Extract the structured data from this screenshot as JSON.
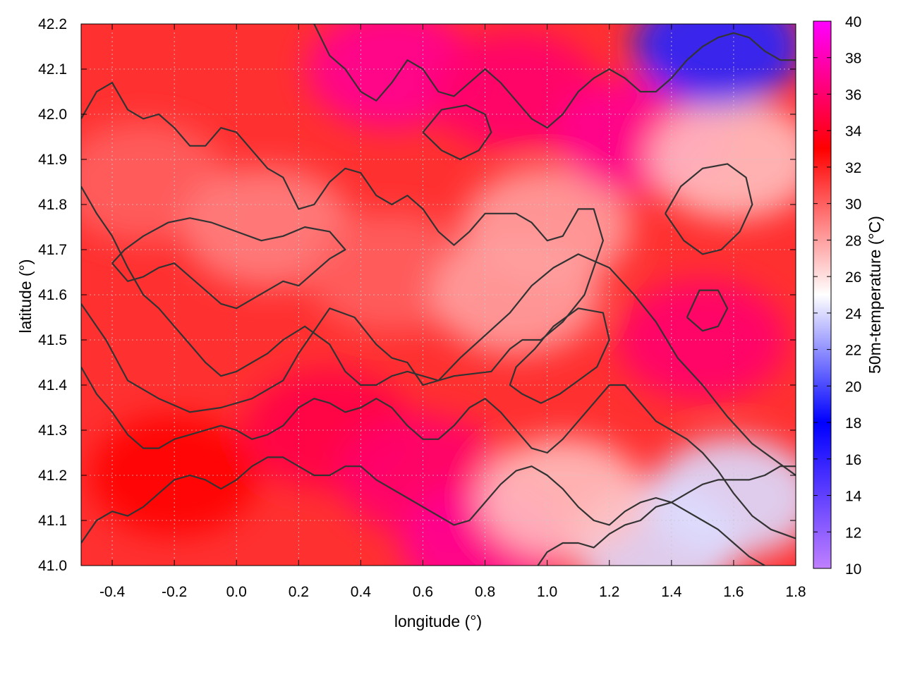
{
  "chart_data": {
    "type": "heatmap",
    "title": "",
    "xlabel": "longitude (°)",
    "ylabel": "latitude (°)",
    "colorbar_label": "50m-temperature (°C)",
    "xlim": [
      -0.5,
      1.8
    ],
    "ylim": [
      41.0,
      42.2
    ],
    "clim": [
      10,
      40
    ],
    "x_ticks": [
      -0.4,
      -0.2,
      0.0,
      0.2,
      0.4,
      0.6,
      0.8,
      1.0,
      1.2,
      1.4,
      1.6,
      1.8
    ],
    "x_tick_labels": [
      "-0.4",
      "-0.2",
      "0.0",
      "0.2",
      "0.4",
      "0.6",
      "0.8",
      "1.0",
      "1.2",
      "1.4",
      "1.6",
      "1.8"
    ],
    "y_ticks": [
      41.0,
      41.1,
      41.2,
      41.3,
      41.4,
      41.5,
      41.6,
      41.7,
      41.8,
      41.9,
      42.0,
      42.1,
      42.2
    ],
    "y_tick_labels": [
      "41.0",
      "41.1",
      "41.2",
      "41.3",
      "41.4",
      "41.5",
      "41.6",
      "41.7",
      "41.8",
      "41.9",
      "42.0",
      "42.1",
      "42.2"
    ],
    "colorbar_ticks": [
      10,
      12,
      14,
      16,
      18,
      20,
      22,
      24,
      26,
      28,
      30,
      32,
      34,
      36,
      38,
      40
    ],
    "colorbar_tick_labels": [
      "10",
      "12",
      "14",
      "16",
      "18",
      "20",
      "22",
      "24",
      "26",
      "28",
      "30",
      "32",
      "34",
      "36",
      "38",
      "40"
    ],
    "colormap": [
      {
        "value": 10,
        "color": "#c080ff"
      },
      {
        "value": 18,
        "color": "#0000ff"
      },
      {
        "value": 25,
        "color": "#ffffff"
      },
      {
        "value": 33,
        "color": "#ff0000"
      },
      {
        "value": 40,
        "color": "#ff00ff"
      }
    ],
    "grid": true,
    "grid_color": "#c8c8c8",
    "contour_color": "#333333",
    "temperature_regions": [
      {
        "lon": -0.3,
        "lat": 41.85,
        "temp": 30
      },
      {
        "lon": 0.1,
        "lat": 41.75,
        "temp": 29
      },
      {
        "lon": 0.5,
        "lat": 41.65,
        "temp": 30
      },
      {
        "lon": 0.9,
        "lat": 41.6,
        "temp": 28
      },
      {
        "lon": 1.0,
        "lat": 41.75,
        "temp": 28
      },
      {
        "lon": -0.2,
        "lat": 41.2,
        "temp": 33
      },
      {
        "lon": 0.3,
        "lat": 41.3,
        "temp": 35
      },
      {
        "lon": 0.6,
        "lat": 41.2,
        "temp": 36
      },
      {
        "lon": 0.8,
        "lat": 41.05,
        "temp": 37
      },
      {
        "lon": 0.5,
        "lat": 42.1,
        "temp": 37
      },
      {
        "lon": 0.9,
        "lat": 42.05,
        "temp": 36
      },
      {
        "lon": 1.3,
        "lat": 41.95,
        "temp": 37
      },
      {
        "lon": 1.5,
        "lat": 41.5,
        "temp": 36
      },
      {
        "lon": 1.6,
        "lat": 41.9,
        "temp": 27
      },
      {
        "lon": 1.55,
        "lat": 42.15,
        "temp": 19
      },
      {
        "lon": 1.35,
        "lat": 41.05,
        "temp": 24
      },
      {
        "lon": 1.6,
        "lat": 41.15,
        "temp": 24
      },
      {
        "lon": 1.05,
        "lat": 41.15,
        "temp": 27
      }
    ],
    "contours": [
      [
        [
          -0.5,
          41.99
        ],
        [
          -0.45,
          42.05
        ],
        [
          -0.4,
          42.07
        ],
        [
          -0.35,
          42.01
        ],
        [
          -0.3,
          41.99
        ],
        [
          -0.25,
          42.0
        ],
        [
          -0.2,
          41.97
        ],
        [
          -0.15,
          41.93
        ],
        [
          -0.1,
          41.93
        ],
        [
          -0.05,
          41.97
        ],
        [
          0.0,
          41.96
        ],
        [
          0.05,
          41.92
        ],
        [
          0.1,
          41.88
        ],
        [
          0.15,
          41.86
        ],
        [
          0.2,
          41.79
        ],
        [
          0.25,
          41.8
        ],
        [
          0.3,
          41.85
        ],
        [
          0.35,
          41.88
        ],
        [
          0.4,
          41.87
        ],
        [
          0.45,
          41.82
        ],
        [
          0.5,
          41.8
        ],
        [
          0.55,
          41.82
        ],
        [
          0.6,
          41.79
        ],
        [
          0.65,
          41.74
        ],
        [
          0.7,
          41.71
        ],
        [
          0.75,
          41.74
        ],
        [
          0.8,
          41.78
        ],
        [
          0.85,
          41.78
        ],
        [
          0.9,
          41.78
        ],
        [
          0.95,
          41.76
        ],
        [
          1.0,
          41.72
        ],
        [
          1.05,
          41.73
        ],
        [
          1.1,
          41.79
        ],
        [
          1.15,
          41.79
        ],
        [
          1.18,
          41.72
        ],
        [
          1.12,
          41.6
        ],
        [
          1.05,
          41.54
        ],
        [
          0.98,
          41.5
        ],
        [
          0.92,
          41.5
        ],
        [
          0.88,
          41.48
        ],
        [
          0.82,
          41.43
        ],
        [
          0.7,
          41.42
        ],
        [
          0.6,
          41.4
        ],
        [
          0.55,
          41.45
        ],
        [
          0.5,
          41.46
        ],
        [
          0.45,
          41.49
        ],
        [
          0.38,
          41.55
        ],
        [
          0.3,
          41.57
        ],
        [
          0.25,
          41.52
        ],
        [
          0.2,
          41.47
        ],
        [
          0.15,
          41.41
        ],
        [
          0.05,
          41.37
        ],
        [
          -0.05,
          41.35
        ],
        [
          -0.15,
          41.34
        ],
        [
          -0.25,
          41.37
        ],
        [
          -0.35,
          41.41
        ],
        [
          -0.42,
          41.5
        ],
        [
          -0.5,
          41.58
        ]
      ],
      [
        [
          -0.5,
          41.84
        ],
        [
          -0.45,
          41.78
        ],
        [
          -0.4,
          41.73
        ],
        [
          -0.35,
          41.66
        ],
        [
          -0.3,
          41.6
        ],
        [
          -0.25,
          41.57
        ],
        [
          -0.2,
          41.53
        ],
        [
          -0.15,
          41.49
        ],
        [
          -0.1,
          41.45
        ],
        [
          -0.05,
          41.42
        ],
        [
          0.0,
          41.43
        ],
        [
          0.05,
          41.45
        ],
        [
          0.1,
          41.47
        ],
        [
          0.15,
          41.5
        ],
        [
          0.22,
          41.53
        ],
        [
          0.3,
          41.49
        ],
        [
          0.35,
          41.43
        ],
        [
          0.4,
          41.4
        ],
        [
          0.45,
          41.4
        ],
        [
          0.5,
          41.42
        ],
        [
          0.55,
          41.43
        ],
        [
          0.6,
          41.42
        ],
        [
          0.65,
          41.41
        ],
        [
          0.72,
          41.46
        ],
        [
          0.8,
          41.51
        ],
        [
          0.88,
          41.56
        ],
        [
          0.95,
          41.62
        ],
        [
          1.02,
          41.66
        ],
        [
          1.1,
          41.69
        ],
        [
          1.2,
          41.66
        ],
        [
          1.28,
          41.6
        ],
        [
          1.35,
          41.54
        ],
        [
          1.42,
          41.46
        ],
        [
          1.5,
          41.4
        ],
        [
          1.58,
          41.33
        ],
        [
          1.66,
          41.27
        ],
        [
          1.74,
          41.23
        ],
        [
          1.8,
          41.2
        ]
      ],
      [
        [
          -0.5,
          41.44
        ],
        [
          -0.45,
          41.38
        ],
        [
          -0.4,
          41.34
        ],
        [
          -0.35,
          41.29
        ],
        [
          -0.3,
          41.26
        ],
        [
          -0.25,
          41.26
        ],
        [
          -0.2,
          41.28
        ],
        [
          -0.15,
          41.29
        ],
        [
          -0.1,
          41.3
        ],
        [
          -0.05,
          41.31
        ],
        [
          0.0,
          41.3
        ],
        [
          0.05,
          41.28
        ],
        [
          0.1,
          41.29
        ],
        [
          0.15,
          41.31
        ],
        [
          0.2,
          41.35
        ],
        [
          0.25,
          41.37
        ],
        [
          0.3,
          41.36
        ],
        [
          0.35,
          41.34
        ],
        [
          0.4,
          41.35
        ],
        [
          0.45,
          41.37
        ],
        [
          0.5,
          41.35
        ],
        [
          0.55,
          41.31
        ],
        [
          0.6,
          41.28
        ],
        [
          0.65,
          41.28
        ],
        [
          0.7,
          41.31
        ],
        [
          0.75,
          41.35
        ],
        [
          0.8,
          41.37
        ],
        [
          0.85,
          41.34
        ],
        [
          0.9,
          41.3
        ],
        [
          0.95,
          41.26
        ],
        [
          1.0,
          41.25
        ],
        [
          1.05,
          41.28
        ],
        [
          1.1,
          41.32
        ],
        [
          1.15,
          41.36
        ],
        [
          1.2,
          41.4
        ],
        [
          1.25,
          41.4
        ],
        [
          1.3,
          41.36
        ],
        [
          1.35,
          41.32
        ],
        [
          1.4,
          41.3
        ],
        [
          1.45,
          41.28
        ],
        [
          1.5,
          41.25
        ],
        [
          1.55,
          41.21
        ],
        [
          1.6,
          41.16
        ],
        [
          1.66,
          41.11
        ],
        [
          1.72,
          41.08
        ],
        [
          1.8,
          41.06
        ]
      ],
      [
        [
          -0.5,
          41.05
        ],
        [
          -0.45,
          41.1
        ],
        [
          -0.4,
          41.12
        ],
        [
          -0.35,
          41.11
        ],
        [
          -0.3,
          41.13
        ],
        [
          -0.25,
          41.16
        ],
        [
          -0.2,
          41.19
        ],
        [
          -0.15,
          41.2
        ],
        [
          -0.1,
          41.19
        ],
        [
          -0.05,
          41.17
        ],
        [
          0.0,
          41.19
        ],
        [
          0.05,
          41.22
        ],
        [
          0.1,
          41.24
        ],
        [
          0.15,
          41.24
        ],
        [
          0.2,
          41.22
        ],
        [
          0.25,
          41.2
        ],
        [
          0.3,
          41.2
        ],
        [
          0.35,
          41.22
        ],
        [
          0.4,
          41.22
        ],
        [
          0.45,
          41.19
        ],
        [
          0.5,
          41.17
        ],
        [
          0.55,
          41.15
        ],
        [
          0.6,
          41.13
        ],
        [
          0.65,
          41.11
        ],
        [
          0.7,
          41.09
        ],
        [
          0.75,
          41.1
        ],
        [
          0.8,
          41.14
        ],
        [
          0.85,
          41.18
        ],
        [
          0.9,
          41.21
        ],
        [
          0.95,
          41.22
        ],
        [
          1.0,
          41.2
        ],
        [
          1.05,
          41.17
        ],
        [
          1.1,
          41.13
        ],
        [
          1.15,
          41.1
        ],
        [
          1.2,
          41.09
        ],
        [
          1.25,
          41.12
        ],
        [
          1.3,
          41.14
        ],
        [
          1.35,
          41.15
        ],
        [
          1.4,
          41.14
        ],
        [
          1.45,
          41.12
        ],
        [
          1.5,
          41.1
        ],
        [
          1.55,
          41.08
        ],
        [
          1.6,
          41.05
        ],
        [
          1.65,
          41.02
        ],
        [
          1.7,
          41.0
        ]
      ],
      [
        [
          0.97,
          41.0
        ],
        [
          1.0,
          41.03
        ],
        [
          1.05,
          41.05
        ],
        [
          1.1,
          41.05
        ],
        [
          1.15,
          41.04
        ],
        [
          1.2,
          41.07
        ],
        [
          1.25,
          41.09
        ],
        [
          1.3,
          41.1
        ],
        [
          1.35,
          41.13
        ],
        [
          1.4,
          41.14
        ],
        [
          1.45,
          41.16
        ],
        [
          1.5,
          41.18
        ],
        [
          1.55,
          41.19
        ],
        [
          1.6,
          41.19
        ],
        [
          1.65,
          41.19
        ],
        [
          1.7,
          41.2
        ],
        [
          1.75,
          41.22
        ],
        [
          1.8,
          41.22
        ]
      ],
      [
        [
          0.25,
          42.2
        ],
        [
          0.3,
          42.13
        ],
        [
          0.35,
          42.1
        ],
        [
          0.4,
          42.05
        ],
        [
          0.45,
          42.03
        ],
        [
          0.5,
          42.07
        ],
        [
          0.55,
          42.12
        ],
        [
          0.6,
          42.1
        ],
        [
          0.65,
          42.05
        ],
        [
          0.7,
          42.04
        ],
        [
          0.75,
          42.07
        ],
        [
          0.8,
          42.1
        ],
        [
          0.85,
          42.07
        ],
        [
          0.9,
          42.03
        ],
        [
          0.95,
          41.99
        ],
        [
          1.0,
          41.97
        ],
        [
          1.05,
          42.0
        ],
        [
          1.1,
          42.05
        ],
        [
          1.15,
          42.08
        ],
        [
          1.2,
          42.1
        ],
        [
          1.25,
          42.08
        ],
        [
          1.3,
          42.05
        ],
        [
          1.35,
          42.05
        ],
        [
          1.4,
          42.08
        ],
        [
          1.45,
          42.12
        ],
        [
          1.5,
          42.15
        ],
        [
          1.55,
          42.17
        ],
        [
          1.6,
          42.18
        ],
        [
          1.65,
          42.17
        ],
        [
          1.7,
          42.14
        ],
        [
          1.75,
          42.12
        ],
        [
          1.8,
          42.12
        ]
      ],
      [
        [
          -0.4,
          41.67
        ],
        [
          -0.35,
          41.63
        ],
        [
          -0.3,
          41.64
        ],
        [
          -0.25,
          41.66
        ],
        [
          -0.2,
          41.67
        ],
        [
          -0.15,
          41.64
        ],
        [
          -0.1,
          41.61
        ],
        [
          -0.05,
          41.58
        ],
        [
          0.0,
          41.57
        ],
        [
          0.05,
          41.59
        ],
        [
          0.1,
          41.61
        ],
        [
          0.15,
          41.63
        ],
        [
          0.2,
          41.62
        ],
        [
          0.25,
          41.65
        ],
        [
          0.3,
          41.68
        ],
        [
          0.35,
          41.7
        ],
        [
          0.3,
          41.74
        ],
        [
          0.22,
          41.75
        ],
        [
          0.15,
          41.73
        ],
        [
          0.08,
          41.72
        ],
        [
          0.0,
          41.74
        ],
        [
          -0.08,
          41.76
        ],
        [
          -0.15,
          41.77
        ],
        [
          -0.22,
          41.76
        ],
        [
          -0.3,
          41.73
        ],
        [
          -0.36,
          41.7
        ],
        [
          -0.4,
          41.67
        ]
      ],
      [
        [
          0.92,
          41.38
        ],
        [
          0.98,
          41.36
        ],
        [
          1.04,
          41.38
        ],
        [
          1.1,
          41.41
        ],
        [
          1.16,
          41.44
        ],
        [
          1.2,
          41.5
        ],
        [
          1.18,
          41.56
        ],
        [
          1.1,
          41.57
        ],
        [
          1.02,
          41.53
        ],
        [
          0.96,
          41.48
        ],
        [
          0.9,
          41.44
        ],
        [
          0.88,
          41.4
        ],
        [
          0.92,
          41.38
        ]
      ],
      [
        [
          1.38,
          41.78
        ],
        [
          1.44,
          41.72
        ],
        [
          1.5,
          41.69
        ],
        [
          1.56,
          41.7
        ],
        [
          1.62,
          41.74
        ],
        [
          1.66,
          41.8
        ],
        [
          1.64,
          41.86
        ],
        [
          1.58,
          41.89
        ],
        [
          1.5,
          41.88
        ],
        [
          1.43,
          41.84
        ],
        [
          1.38,
          41.78
        ]
      ],
      [
        [
          0.6,
          41.96
        ],
        [
          0.66,
          41.92
        ],
        [
          0.72,
          41.9
        ],
        [
          0.78,
          41.92
        ],
        [
          0.82,
          41.96
        ],
        [
          0.8,
          42.0
        ],
        [
          0.74,
          42.02
        ],
        [
          0.66,
          42.01
        ],
        [
          0.6,
          41.96
        ]
      ],
      [
        [
          1.45,
          41.55
        ],
        [
          1.5,
          41.52
        ],
        [
          1.55,
          41.53
        ],
        [
          1.58,
          41.57
        ],
        [
          1.55,
          41.61
        ],
        [
          1.49,
          41.61
        ],
        [
          1.45,
          41.55
        ]
      ]
    ]
  }
}
